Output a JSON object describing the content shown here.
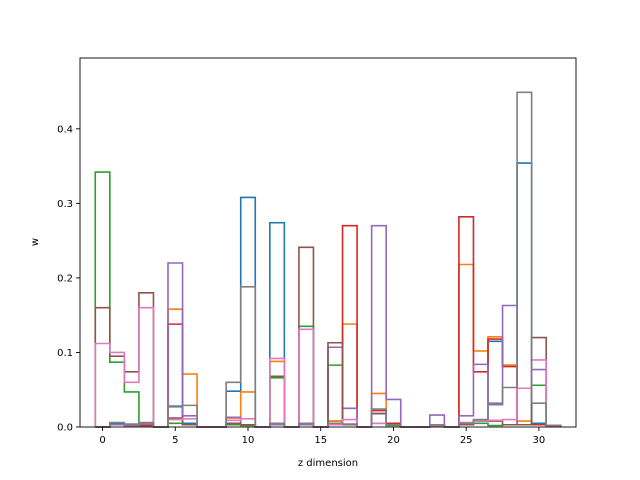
{
  "chart_data": {
    "type": "step",
    "xlabel": "z dimension",
    "ylabel": "w",
    "xlim": [
      -1.55,
      32.55
    ],
    "ylim": [
      0,
      0.495
    ],
    "xticks": [
      0,
      5,
      10,
      15,
      20,
      25,
      30
    ],
    "yticks": [
      0.0,
      0.1,
      0.2,
      0.3,
      0.4
    ],
    "ytick_labels": [
      "0.0",
      "0.1",
      "0.2",
      "0.3",
      "0.4"
    ],
    "x": [
      0,
      1,
      2,
      3,
      4,
      5,
      6,
      7,
      8,
      9,
      10,
      11,
      12,
      13,
      14,
      15,
      16,
      17,
      18,
      19,
      20,
      21,
      22,
      23,
      24,
      25,
      26,
      27,
      28,
      29,
      30,
      31
    ],
    "series": [
      {
        "color": "#1f77b4",
        "values": [
          0.0,
          0.005,
          0.003,
          0.004,
          0.0,
          0.028,
          0.005,
          0.0,
          0.0,
          0.048,
          0.308,
          0.0,
          0.274,
          0.0,
          0.003,
          0.0,
          0.008,
          0.003,
          0.0,
          0.018,
          0.005,
          0.0,
          0.0,
          0.002,
          0.0,
          0.003,
          0.008,
          0.115,
          0.083,
          0.354,
          0.005,
          0.002
        ]
      },
      {
        "color": "#ff7f0e",
        "values": [
          0.0,
          0.003,
          0.002,
          0.002,
          0.0,
          0.158,
          0.071,
          0.0,
          0.0,
          0.012,
          0.047,
          0.0,
          0.088,
          0.0,
          0.003,
          0.0,
          0.008,
          0.138,
          0.0,
          0.045,
          0.003,
          0.0,
          0.0,
          0.002,
          0.0,
          0.218,
          0.102,
          0.121,
          0.083,
          0.008,
          0.003,
          0.002
        ]
      },
      {
        "color": "#2ca02c",
        "values": [
          0.342,
          0.087,
          0.047,
          0.002,
          0.0,
          0.005,
          0.003,
          0.0,
          0.0,
          0.003,
          0.002,
          0.0,
          0.066,
          0.0,
          0.135,
          0.0,
          0.083,
          0.003,
          0.0,
          0.005,
          0.002,
          0.0,
          0.0,
          0.002,
          0.0,
          0.003,
          0.005,
          0.002,
          0.003,
          0.003,
          0.056,
          0.002
        ]
      },
      {
        "color": "#d62728",
        "values": [
          0.0,
          0.003,
          0.002,
          0.002,
          0.0,
          0.138,
          0.003,
          0.0,
          0.0,
          0.005,
          0.003,
          0.0,
          0.003,
          0.0,
          0.003,
          0.0,
          0.003,
          0.27,
          0.0,
          0.022,
          0.005,
          0.0,
          0.0,
          0.002,
          0.0,
          0.282,
          0.074,
          0.118,
          0.081,
          0.003,
          0.003,
          0.002
        ]
      },
      {
        "color": "#9467bd",
        "values": [
          0.0,
          0.003,
          0.002,
          0.004,
          0.0,
          0.22,
          0.015,
          0.0,
          0.0,
          0.013,
          0.003,
          0.0,
          0.003,
          0.0,
          0.003,
          0.0,
          0.107,
          0.025,
          0.0,
          0.27,
          0.037,
          0.0,
          0.0,
          0.016,
          0.0,
          0.015,
          0.084,
          0.032,
          0.163,
          0.003,
          0.077,
          0.002
        ]
      },
      {
        "color": "#8c564b",
        "values": [
          0.16,
          0.095,
          0.074,
          0.18,
          0.0,
          0.012,
          0.003,
          0.0,
          0.0,
          0.005,
          0.003,
          0.0,
          0.068,
          0.0,
          0.241,
          0.0,
          0.113,
          0.003,
          0.0,
          0.018,
          0.003,
          0.0,
          0.0,
          0.002,
          0.0,
          0.003,
          0.009,
          0.008,
          0.003,
          0.003,
          0.12,
          0.002
        ]
      },
      {
        "color": "#e377c2",
        "values": [
          0.112,
          0.1,
          0.06,
          0.16,
          0.0,
          0.01,
          0.011,
          0.0,
          0.0,
          0.009,
          0.011,
          0.0,
          0.092,
          0.0,
          0.131,
          0.0,
          0.003,
          0.01,
          0.0,
          0.005,
          0.003,
          0.0,
          0.0,
          0.002,
          0.0,
          0.006,
          0.008,
          0.009,
          0.01,
          0.052,
          0.09,
          0.002
        ]
      },
      {
        "color": "#7f7f7f",
        "values": [
          0.0,
          0.006,
          0.004,
          0.006,
          0.0,
          0.027,
          0.029,
          0.0,
          0.0,
          0.06,
          0.188,
          0.0,
          0.005,
          0.0,
          0.005,
          0.0,
          0.005,
          0.004,
          0.0,
          0.024,
          0.003,
          0.0,
          0.0,
          0.003,
          0.0,
          0.005,
          0.01,
          0.03,
          0.053,
          0.449,
          0.032,
          0.002
        ]
      }
    ]
  }
}
